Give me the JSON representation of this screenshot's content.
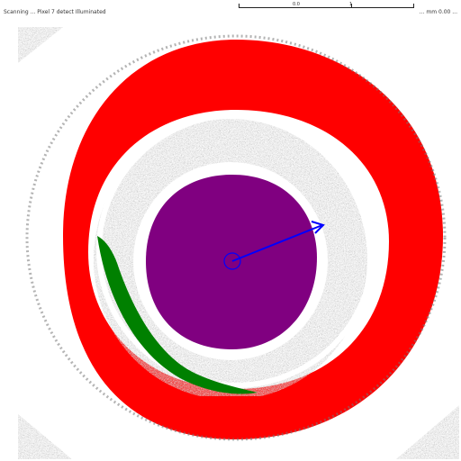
{
  "header": {
    "left_text": "Scanning ... Pixel 7 detect Illuminated",
    "right_text": "... mm 0.00 ...",
    "scale_labels": [
      "0.0",
      "1"
    ]
  },
  "overlay_colors": {
    "background": "#ffffff",
    "texture": "#8a8a8a",
    "outer_ring": "#ff0000",
    "inner_disc": "#800080",
    "lesion": "#008000",
    "vector": "#0000ff"
  },
  "regions": [
    {
      "name": "outer-ring-region",
      "color_key": "outer_ring"
    },
    {
      "name": "inner-disc-region",
      "color_key": "inner_disc"
    },
    {
      "name": "lesion-region",
      "color_key": "lesion"
    },
    {
      "name": "direction-vector",
      "color_key": "vector"
    }
  ]
}
